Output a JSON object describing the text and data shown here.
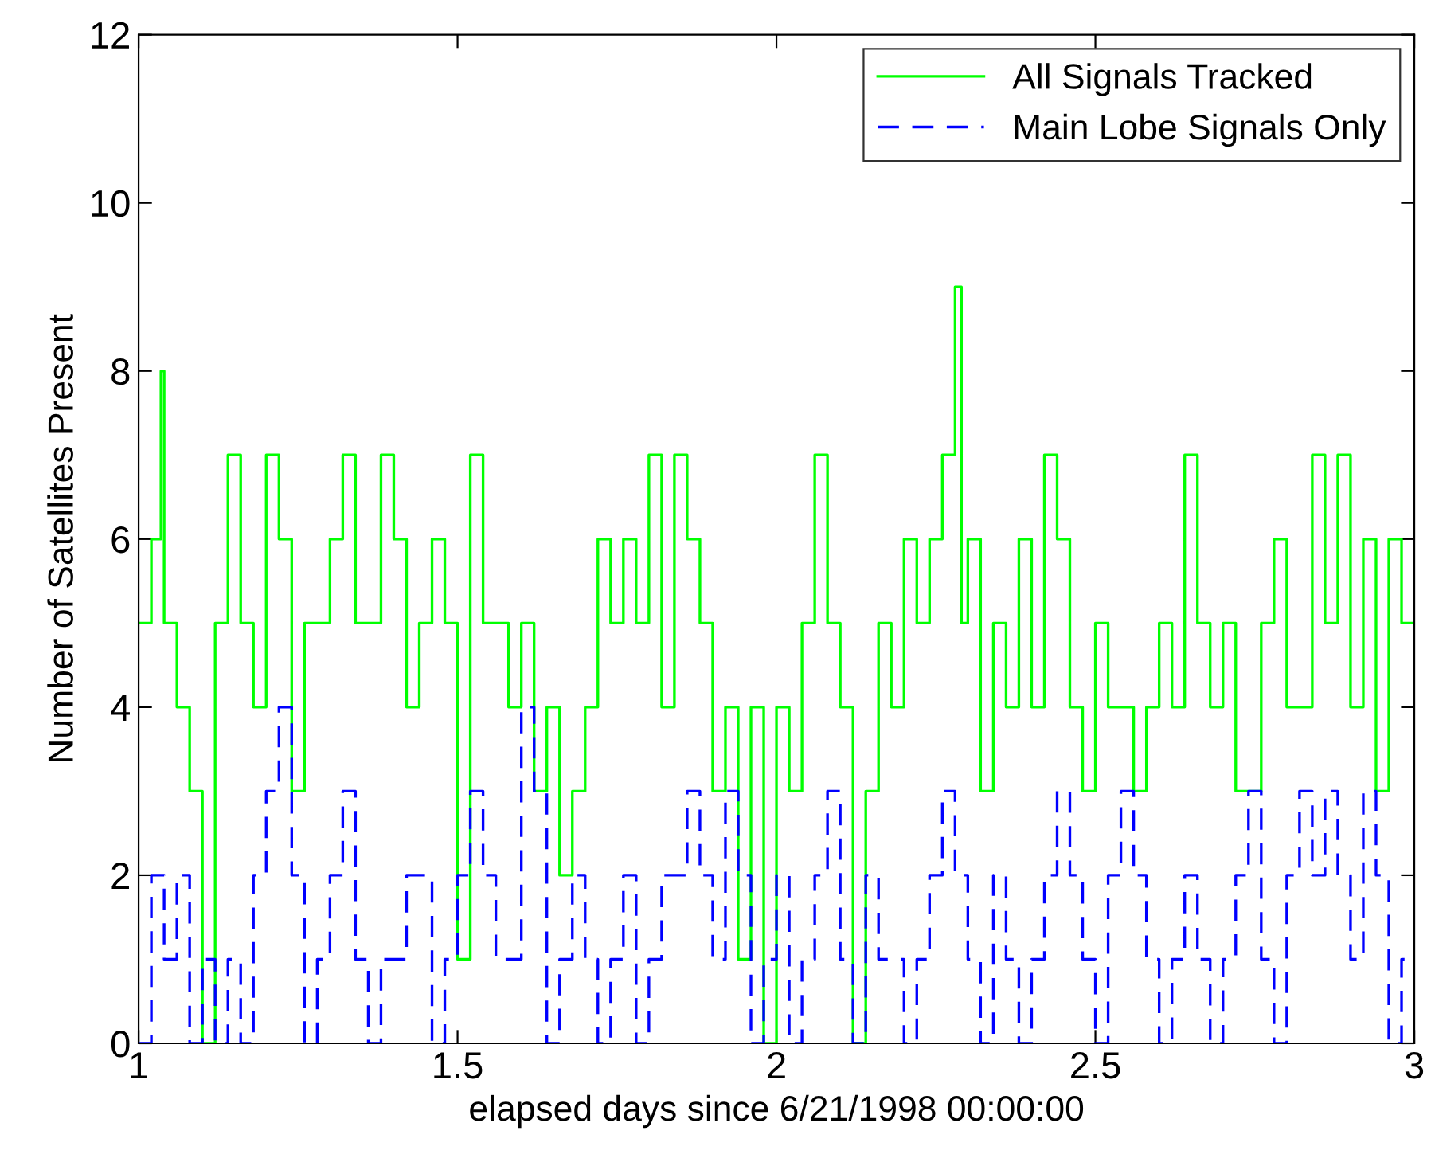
{
  "chart_data": {
    "type": "step",
    "xlabel": "elapsed days since 6/21/1998 00:00:00",
    "ylabel": "Number of Satellites Present",
    "xlim": [
      1,
      3
    ],
    "ylim": [
      0,
      12
    ],
    "xticks": [
      1,
      1.5,
      2,
      2.5,
      3
    ],
    "yticks": [
      0,
      2,
      4,
      6,
      8,
      10,
      12
    ],
    "legend": "top right",
    "series": [
      {
        "name": "All Signals Tracked",
        "color": "#00ff00",
        "line_style": "solid",
        "x": [
          1.0,
          1.02,
          1.035,
          1.04,
          1.06,
          1.08,
          1.1,
          1.12,
          1.14,
          1.16,
          1.18,
          1.2,
          1.22,
          1.24,
          1.26,
          1.28,
          1.3,
          1.32,
          1.34,
          1.36,
          1.38,
          1.4,
          1.42,
          1.44,
          1.46,
          1.48,
          1.5,
          1.52,
          1.54,
          1.56,
          1.58,
          1.6,
          1.62,
          1.64,
          1.66,
          1.68,
          1.7,
          1.72,
          1.74,
          1.76,
          1.78,
          1.8,
          1.82,
          1.84,
          1.86,
          1.88,
          1.9,
          1.92,
          1.94,
          1.96,
          1.98,
          2.0,
          2.02,
          2.04,
          2.06,
          2.08,
          2.1,
          2.12,
          2.14,
          2.16,
          2.18,
          2.2,
          2.22,
          2.24,
          2.26,
          2.28,
          2.29,
          2.3,
          2.32,
          2.34,
          2.36,
          2.38,
          2.4,
          2.42,
          2.44,
          2.46,
          2.48,
          2.5,
          2.52,
          2.54,
          2.56,
          2.58,
          2.6,
          2.62,
          2.64,
          2.66,
          2.68,
          2.7,
          2.72,
          2.74,
          2.76,
          2.78,
          2.8,
          2.82,
          2.84,
          2.86,
          2.88,
          2.9,
          2.92,
          2.94,
          2.96,
          2.98,
          3.0
        ],
        "values": [
          5,
          6,
          8,
          5,
          4,
          3,
          0,
          5,
          7,
          5,
          4,
          7,
          6,
          3,
          5,
          5,
          6,
          7,
          5,
          5,
          7,
          6,
          4,
          5,
          6,
          5,
          1,
          7,
          5,
          5,
          4,
          5,
          3,
          4,
          2,
          3,
          4,
          6,
          5,
          6,
          5,
          7,
          4,
          7,
          6,
          5,
          3,
          4,
          1,
          4,
          0,
          4,
          3,
          5,
          7,
          5,
          4,
          0,
          3,
          5,
          4,
          6,
          5,
          6,
          7,
          9,
          5,
          6,
          3,
          5,
          4,
          6,
          4,
          7,
          6,
          4,
          3,
          5,
          4,
          4,
          3,
          4,
          5,
          4,
          7,
          5,
          4,
          5,
          3,
          3,
          5,
          6,
          4,
          4,
          7,
          5,
          7,
          4,
          6,
          3,
          6,
          5,
          6
        ]
      },
      {
        "name": "Main Lobe Signals Only",
        "color": "#0000ff",
        "line_style": "dashed",
        "x": [
          1.0,
          1.02,
          1.04,
          1.06,
          1.08,
          1.1,
          1.12,
          1.14,
          1.16,
          1.18,
          1.2,
          1.22,
          1.24,
          1.26,
          1.28,
          1.3,
          1.32,
          1.34,
          1.36,
          1.38,
          1.4,
          1.42,
          1.44,
          1.46,
          1.48,
          1.5,
          1.52,
          1.54,
          1.56,
          1.58,
          1.6,
          1.62,
          1.64,
          1.66,
          1.68,
          1.7,
          1.72,
          1.74,
          1.76,
          1.78,
          1.8,
          1.82,
          1.84,
          1.86,
          1.88,
          1.9,
          1.92,
          1.94,
          1.96,
          1.98,
          2.0,
          2.02,
          2.04,
          2.06,
          2.08,
          2.1,
          2.12,
          2.14,
          2.16,
          2.18,
          2.2,
          2.22,
          2.24,
          2.26,
          2.28,
          2.3,
          2.32,
          2.34,
          2.36,
          2.38,
          2.4,
          2.42,
          2.44,
          2.46,
          2.48,
          2.5,
          2.52,
          2.54,
          2.56,
          2.58,
          2.6,
          2.62,
          2.64,
          2.66,
          2.68,
          2.7,
          2.72,
          2.74,
          2.76,
          2.78,
          2.8,
          2.82,
          2.84,
          2.86,
          2.88,
          2.9,
          2.92,
          2.94,
          2.96,
          2.98,
          3.0
        ],
        "values": [
          0,
          2,
          1,
          2,
          0,
          1,
          0,
          1,
          0,
          2,
          3,
          4,
          2,
          0,
          1,
          2,
          3,
          1,
          0,
          1,
          1,
          2,
          2,
          0,
          1,
          2,
          3,
          2,
          1,
          1,
          4,
          3,
          0,
          1,
          2,
          1,
          0,
          1,
          2,
          0,
          1,
          2,
          2,
          3,
          2,
          1,
          3,
          2,
          0,
          1,
          2,
          0,
          1,
          2,
          3,
          1,
          0,
          2,
          1,
          1,
          0,
          1,
          2,
          3,
          2,
          1,
          0,
          2,
          1,
          0,
          1,
          2,
          3,
          2,
          1,
          0,
          2,
          3,
          2,
          1,
          0,
          1,
          2,
          1,
          0,
          1,
          2,
          3,
          1,
          0,
          2,
          3,
          2,
          3,
          2,
          1,
          3,
          2,
          0,
          1,
          0
        ]
      }
    ]
  }
}
